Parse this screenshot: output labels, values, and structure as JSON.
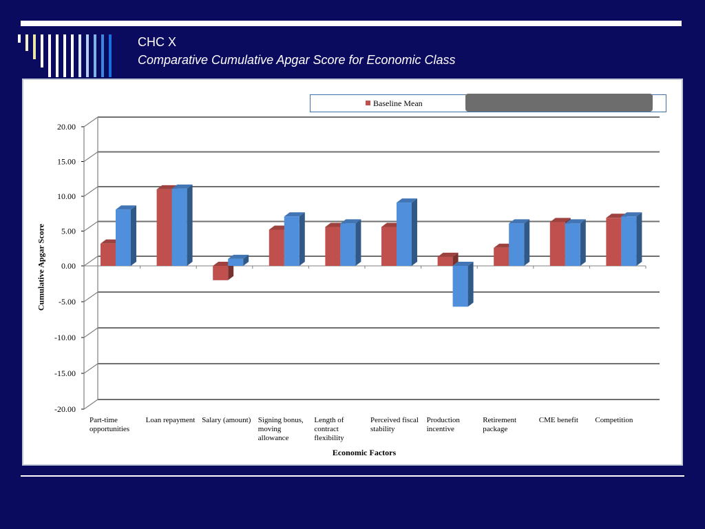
{
  "slide": {
    "title_line1": "CHC X",
    "title_line2": "Comparative Cumulative Apgar Score for Economic Class"
  },
  "colors": {
    "background": "#0a0a5e",
    "baseline": "#c0504d",
    "second_series": "#4f8fdc"
  },
  "chart_data": {
    "type": "bar",
    "categories": [
      "Part-time\nopportunities",
      "Loan repayment",
      "Salary (amount)",
      "Signing bonus,\nmoving\nallowance",
      "Length of\ncontract\nflexibility",
      "Perceived fiscal\nstability",
      "Production\nincentive",
      "Retirement\npackage",
      "CME benefit",
      "Competition"
    ],
    "series": [
      {
        "name": "Baseline Mean",
        "values": [
          3.2,
          11.0,
          -2.0,
          5.2,
          5.6,
          5.6,
          1.3,
          2.6,
          6.3,
          6.9
        ]
      },
      {
        "values": [
          8.1,
          11.1,
          1.0,
          7.1,
          6.1,
          9.1,
          -5.7,
          6.1,
          6.1,
          7.1
        ]
      }
    ],
    "xlabel": "Economic Factors",
    "ylabel": "Cumulative Apgar Score",
    "ylim": [
      -20,
      20
    ],
    "yticks": [
      "20.00",
      "15.00",
      "10.00",
      "5.00",
      "0.00",
      "-5.00",
      "-10.00",
      "-15.00",
      "-20.00"
    ],
    "grid": true,
    "legend_placement": "top"
  }
}
